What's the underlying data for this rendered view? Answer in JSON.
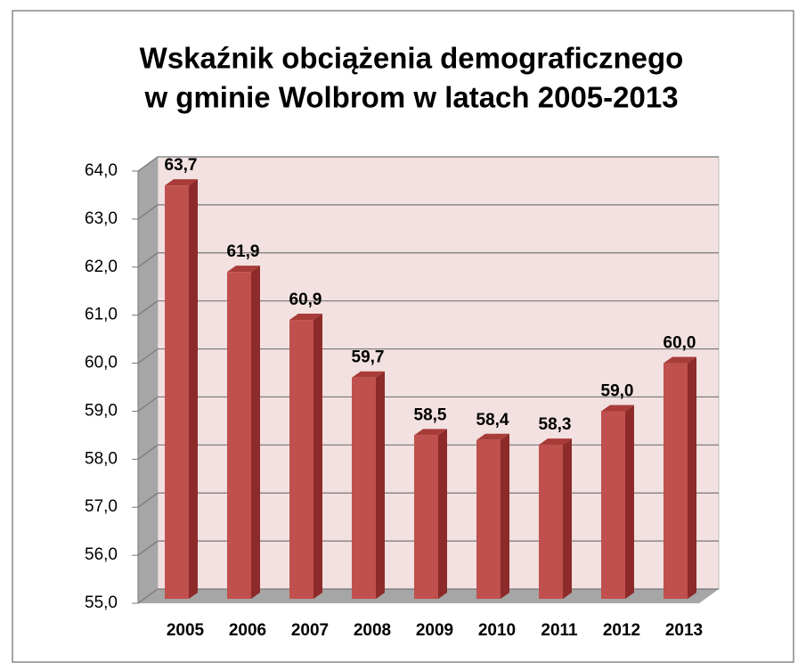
{
  "chart_data": {
    "type": "bar",
    "title": [
      "Wskaźnik obciążenia demograficznego",
      "w gminie Wolbrom w latach 2005-2013"
    ],
    "categories": [
      "2005",
      "2006",
      "2007",
      "2008",
      "2009",
      "2010",
      "2011",
      "2012",
      "2013"
    ],
    "values": [
      63.7,
      61.9,
      60.9,
      59.7,
      58.5,
      58.4,
      58.3,
      59.0,
      60.0
    ],
    "value_labels": [
      "63,7",
      "61,9",
      "60,9",
      "59,7",
      "58,5",
      "58,4",
      "58,3",
      "59,0",
      "60,0"
    ],
    "color": "#c0504d",
    "ylim": [
      55,
      64
    ],
    "yticks": [
      {
        "value": 55,
        "label": "55,0"
      },
      {
        "value": 56,
        "label": "56,0"
      },
      {
        "value": 57,
        "label": "57,0"
      },
      {
        "value": 58,
        "label": "58,0"
      },
      {
        "value": 59,
        "label": "59,0"
      },
      {
        "value": 60,
        "label": "60,0"
      },
      {
        "value": 61,
        "label": "61,0"
      },
      {
        "value": 62,
        "label": "62,0"
      },
      {
        "value": 63,
        "label": "63,0"
      },
      {
        "value": 64,
        "label": "64,0"
      }
    ],
    "grid": true
  }
}
